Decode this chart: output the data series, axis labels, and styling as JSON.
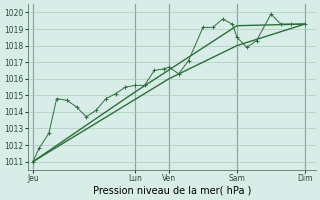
{
  "bg_color": "#d8ede8",
  "grid_color": "#aaccbb",
  "line_color": "#2d6e3a",
  "ylim": [
    1010.5,
    1020.5
  ],
  "yticks": [
    1011,
    1012,
    1013,
    1014,
    1015,
    1016,
    1017,
    1018,
    1019,
    1020
  ],
  "xlabel": "Pression niveau de la mer( hPa )",
  "xtick_labels": [
    "Jeu",
    "Lun",
    "Ven",
    "Sam",
    "Dim"
  ],
  "xtick_positions": [
    0.0,
    0.375,
    0.5,
    0.75,
    1.0
  ],
  "vline_positions": [
    0.0,
    0.375,
    0.5,
    0.75,
    1.0
  ],
  "xlim": [
    -0.02,
    1.04
  ],
  "series1_x": [
    0.0,
    0.022,
    0.058,
    0.087,
    0.124,
    0.16,
    0.196,
    0.232,
    0.268,
    0.304,
    0.34,
    0.375,
    0.41,
    0.446,
    0.482,
    0.5,
    0.536,
    0.572,
    0.625,
    0.661,
    0.697,
    0.733,
    0.75,
    0.786,
    0.822,
    0.875,
    0.911,
    0.947,
    1.0
  ],
  "series1_y": [
    1011.0,
    1011.8,
    1012.7,
    1014.8,
    1014.7,
    1014.3,
    1013.7,
    1014.1,
    1014.8,
    1015.1,
    1015.5,
    1015.6,
    1015.6,
    1016.5,
    1016.6,
    1016.7,
    1016.3,
    1017.1,
    1019.1,
    1019.1,
    1019.6,
    1019.3,
    1018.5,
    1017.9,
    1018.3,
    1019.9,
    1019.3,
    1019.3,
    1019.3
  ],
  "series2_x": [
    0.0,
    0.5,
    0.75,
    1.0
  ],
  "series2_y": [
    1011.0,
    1016.0,
    1018.0,
    1019.3
  ],
  "series3_x": [
    0.0,
    0.375,
    0.75,
    1.0
  ],
  "series3_y": [
    1011.0,
    1015.2,
    1019.2,
    1019.3
  ]
}
